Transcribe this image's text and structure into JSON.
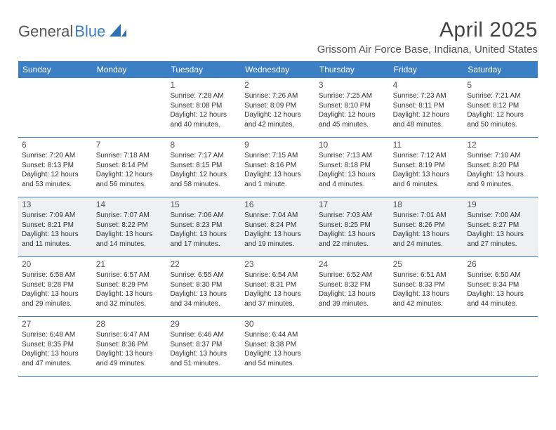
{
  "logo": {
    "general": "General",
    "blue": "Blue"
  },
  "title": "April 2025",
  "location": "Grissom Air Force Base, Indiana, United States",
  "weekdays": [
    "Sunday",
    "Monday",
    "Tuesday",
    "Wednesday",
    "Thursday",
    "Friday",
    "Saturday"
  ],
  "colors": {
    "brand": "#3b7fc4",
    "background": "#ffffff",
    "shaded": "#eef0f1",
    "text": "#333333"
  },
  "weeks": [
    {
      "shaded": false,
      "days": [
        {
          "num": "",
          "sunrise": "",
          "sunset": "",
          "daylight1": "",
          "daylight2": ""
        },
        {
          "num": "",
          "sunrise": "",
          "sunset": "",
          "daylight1": "",
          "daylight2": ""
        },
        {
          "num": "1",
          "sunrise": "Sunrise: 7:28 AM",
          "sunset": "Sunset: 8:08 PM",
          "daylight1": "Daylight: 12 hours",
          "daylight2": "and 40 minutes."
        },
        {
          "num": "2",
          "sunrise": "Sunrise: 7:26 AM",
          "sunset": "Sunset: 8:09 PM",
          "daylight1": "Daylight: 12 hours",
          "daylight2": "and 42 minutes."
        },
        {
          "num": "3",
          "sunrise": "Sunrise: 7:25 AM",
          "sunset": "Sunset: 8:10 PM",
          "daylight1": "Daylight: 12 hours",
          "daylight2": "and 45 minutes."
        },
        {
          "num": "4",
          "sunrise": "Sunrise: 7:23 AM",
          "sunset": "Sunset: 8:11 PM",
          "daylight1": "Daylight: 12 hours",
          "daylight2": "and 48 minutes."
        },
        {
          "num": "5",
          "sunrise": "Sunrise: 7:21 AM",
          "sunset": "Sunset: 8:12 PM",
          "daylight1": "Daylight: 12 hours",
          "daylight2": "and 50 minutes."
        }
      ]
    },
    {
      "shaded": false,
      "days": [
        {
          "num": "6",
          "sunrise": "Sunrise: 7:20 AM",
          "sunset": "Sunset: 8:13 PM",
          "daylight1": "Daylight: 12 hours",
          "daylight2": "and 53 minutes."
        },
        {
          "num": "7",
          "sunrise": "Sunrise: 7:18 AM",
          "sunset": "Sunset: 8:14 PM",
          "daylight1": "Daylight: 12 hours",
          "daylight2": "and 56 minutes."
        },
        {
          "num": "8",
          "sunrise": "Sunrise: 7:17 AM",
          "sunset": "Sunset: 8:15 PM",
          "daylight1": "Daylight: 12 hours",
          "daylight2": "and 58 minutes."
        },
        {
          "num": "9",
          "sunrise": "Sunrise: 7:15 AM",
          "sunset": "Sunset: 8:16 PM",
          "daylight1": "Daylight: 13 hours",
          "daylight2": "and 1 minute."
        },
        {
          "num": "10",
          "sunrise": "Sunrise: 7:13 AM",
          "sunset": "Sunset: 8:18 PM",
          "daylight1": "Daylight: 13 hours",
          "daylight2": "and 4 minutes."
        },
        {
          "num": "11",
          "sunrise": "Sunrise: 7:12 AM",
          "sunset": "Sunset: 8:19 PM",
          "daylight1": "Daylight: 13 hours",
          "daylight2": "and 6 minutes."
        },
        {
          "num": "12",
          "sunrise": "Sunrise: 7:10 AM",
          "sunset": "Sunset: 8:20 PM",
          "daylight1": "Daylight: 13 hours",
          "daylight2": "and 9 minutes."
        }
      ]
    },
    {
      "shaded": true,
      "days": [
        {
          "num": "13",
          "sunrise": "Sunrise: 7:09 AM",
          "sunset": "Sunset: 8:21 PM",
          "daylight1": "Daylight: 13 hours",
          "daylight2": "and 11 minutes."
        },
        {
          "num": "14",
          "sunrise": "Sunrise: 7:07 AM",
          "sunset": "Sunset: 8:22 PM",
          "daylight1": "Daylight: 13 hours",
          "daylight2": "and 14 minutes."
        },
        {
          "num": "15",
          "sunrise": "Sunrise: 7:06 AM",
          "sunset": "Sunset: 8:23 PM",
          "daylight1": "Daylight: 13 hours",
          "daylight2": "and 17 minutes."
        },
        {
          "num": "16",
          "sunrise": "Sunrise: 7:04 AM",
          "sunset": "Sunset: 8:24 PM",
          "daylight1": "Daylight: 13 hours",
          "daylight2": "and 19 minutes."
        },
        {
          "num": "17",
          "sunrise": "Sunrise: 7:03 AM",
          "sunset": "Sunset: 8:25 PM",
          "daylight1": "Daylight: 13 hours",
          "daylight2": "and 22 minutes."
        },
        {
          "num": "18",
          "sunrise": "Sunrise: 7:01 AM",
          "sunset": "Sunset: 8:26 PM",
          "daylight1": "Daylight: 13 hours",
          "daylight2": "and 24 minutes."
        },
        {
          "num": "19",
          "sunrise": "Sunrise: 7:00 AM",
          "sunset": "Sunset: 8:27 PM",
          "daylight1": "Daylight: 13 hours",
          "daylight2": "and 27 minutes."
        }
      ]
    },
    {
      "shaded": false,
      "days": [
        {
          "num": "20",
          "sunrise": "Sunrise: 6:58 AM",
          "sunset": "Sunset: 8:28 PM",
          "daylight1": "Daylight: 13 hours",
          "daylight2": "and 29 minutes."
        },
        {
          "num": "21",
          "sunrise": "Sunrise: 6:57 AM",
          "sunset": "Sunset: 8:29 PM",
          "daylight1": "Daylight: 13 hours",
          "daylight2": "and 32 minutes."
        },
        {
          "num": "22",
          "sunrise": "Sunrise: 6:55 AM",
          "sunset": "Sunset: 8:30 PM",
          "daylight1": "Daylight: 13 hours",
          "daylight2": "and 34 minutes."
        },
        {
          "num": "23",
          "sunrise": "Sunrise: 6:54 AM",
          "sunset": "Sunset: 8:31 PM",
          "daylight1": "Daylight: 13 hours",
          "daylight2": "and 37 minutes."
        },
        {
          "num": "24",
          "sunrise": "Sunrise: 6:52 AM",
          "sunset": "Sunset: 8:32 PM",
          "daylight1": "Daylight: 13 hours",
          "daylight2": "and 39 minutes."
        },
        {
          "num": "25",
          "sunrise": "Sunrise: 6:51 AM",
          "sunset": "Sunset: 8:33 PM",
          "daylight1": "Daylight: 13 hours",
          "daylight2": "and 42 minutes."
        },
        {
          "num": "26",
          "sunrise": "Sunrise: 6:50 AM",
          "sunset": "Sunset: 8:34 PM",
          "daylight1": "Daylight: 13 hours",
          "daylight2": "and 44 minutes."
        }
      ]
    },
    {
      "shaded": false,
      "days": [
        {
          "num": "27",
          "sunrise": "Sunrise: 6:48 AM",
          "sunset": "Sunset: 8:35 PM",
          "daylight1": "Daylight: 13 hours",
          "daylight2": "and 47 minutes."
        },
        {
          "num": "28",
          "sunrise": "Sunrise: 6:47 AM",
          "sunset": "Sunset: 8:36 PM",
          "daylight1": "Daylight: 13 hours",
          "daylight2": "and 49 minutes."
        },
        {
          "num": "29",
          "sunrise": "Sunrise: 6:46 AM",
          "sunset": "Sunset: 8:37 PM",
          "daylight1": "Daylight: 13 hours",
          "daylight2": "and 51 minutes."
        },
        {
          "num": "30",
          "sunrise": "Sunrise: 6:44 AM",
          "sunset": "Sunset: 8:38 PM",
          "daylight1": "Daylight: 13 hours",
          "daylight2": "and 54 minutes."
        },
        {
          "num": "",
          "sunrise": "",
          "sunset": "",
          "daylight1": "",
          "daylight2": ""
        },
        {
          "num": "",
          "sunrise": "",
          "sunset": "",
          "daylight1": "",
          "daylight2": ""
        },
        {
          "num": "",
          "sunrise": "",
          "sunset": "",
          "daylight1": "",
          "daylight2": ""
        }
      ]
    }
  ]
}
